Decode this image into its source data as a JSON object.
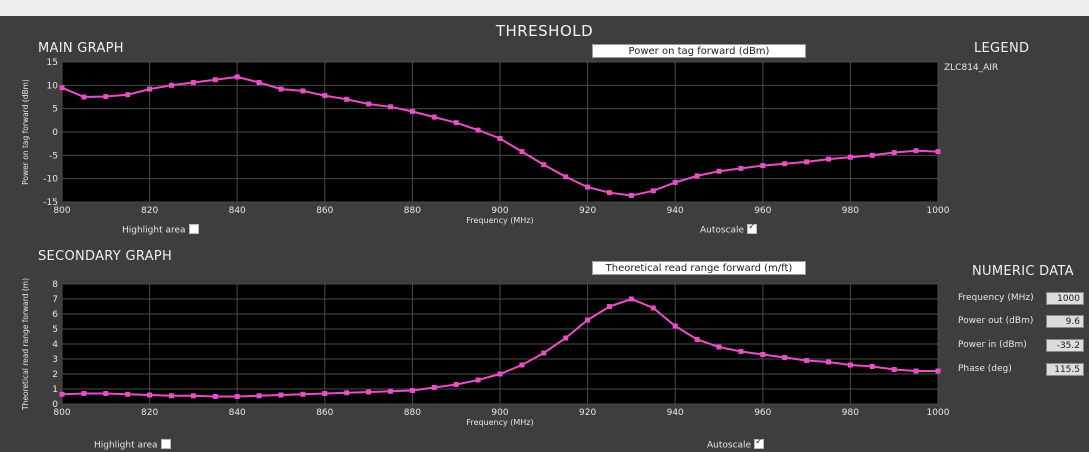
{
  "app": {
    "title": "THRESHOLD"
  },
  "main_graph": {
    "section_title": "MAIN GRAPH",
    "selector_label": "Power on tag forward (dBm)",
    "highlight_label": "Highlight area",
    "highlight_checked": false,
    "autoscale_label": "Autoscale",
    "autoscale_checked": true
  },
  "secondary_graph": {
    "section_title": "SECONDARY GRAPH",
    "selector_label": "Theoretical read range forward (m/ft)",
    "highlight_label": "Highlight area",
    "highlight_checked": false,
    "autoscale_label": "Autoscale",
    "autoscale_checked": true
  },
  "legend": {
    "title": "LEGEND",
    "items": [
      "ZLC814_AIR"
    ]
  },
  "numeric_data": {
    "title": "NUMERIC DATA",
    "rows": [
      {
        "label": "Frequency (MHz)",
        "value": "1000"
      },
      {
        "label": "Power out (dBm)",
        "value": "9.6"
      },
      {
        "label": "Power in (dBm)",
        "value": "-35.2"
      },
      {
        "label": "Phase (deg)",
        "value": "115.5"
      }
    ]
  },
  "colors": {
    "series": "#e84fc4",
    "plot_bg": "#000000",
    "grid": "#4a4a4a"
  },
  "chart_data": [
    {
      "type": "line",
      "xlabel": "Frequency (MHz)",
      "ylabel": "Power on tag forward (dBm)",
      "xlim": [
        800,
        1000
      ],
      "ylim": [
        -15,
        15
      ],
      "x_ticks": [
        800,
        820,
        840,
        860,
        880,
        900,
        920,
        940,
        960,
        980,
        1000
      ],
      "y_ticks": [
        15,
        10,
        5,
        0,
        -5,
        -10,
        -15
      ],
      "grid": true,
      "series": [
        {
          "x": [
            800,
            805,
            810,
            815,
            820,
            825,
            830,
            835,
            840,
            845,
            850,
            855,
            860,
            865,
            870,
            875,
            880,
            885,
            890,
            895,
            900,
            905,
            910,
            915,
            920,
            925,
            930,
            935,
            940,
            945,
            950,
            955,
            960,
            965,
            970,
            975,
            980,
            985,
            990,
            995,
            1000
          ],
          "y": [
            9.5,
            7.5,
            7.6,
            8,
            9.2,
            10,
            10.6,
            11.2,
            11.8,
            10.6,
            9.2,
            8.8,
            7.8,
            7,
            6,
            5.4,
            4.4,
            3.2,
            2,
            0.4,
            -1.4,
            -4.2,
            -7,
            -9.6,
            -11.8,
            -13,
            -13.6,
            -12.6,
            -10.8,
            -9.4,
            -8.4,
            -7.8,
            -7.2,
            -6.8,
            -6.4,
            -5.8,
            -5.4,
            -5,
            -4.4,
            -4,
            -4.2
          ]
        }
      ]
    },
    {
      "type": "line",
      "xlabel": "Frequency (MHz)",
      "ylabel": "Theoretical read range forward (m)",
      "xlim": [
        800,
        1000
      ],
      "ylim": [
        0,
        8
      ],
      "x_ticks": [
        800,
        820,
        840,
        860,
        880,
        900,
        920,
        940,
        960,
        980,
        1000
      ],
      "y_ticks": [
        8,
        7,
        6,
        5,
        4,
        3,
        2,
        1,
        0
      ],
      "grid": true,
      "series": [
        {
          "x": [
            800,
            805,
            810,
            815,
            820,
            825,
            830,
            835,
            840,
            845,
            850,
            855,
            860,
            865,
            870,
            875,
            880,
            885,
            890,
            895,
            900,
            905,
            910,
            915,
            920,
            925,
            930,
            935,
            940,
            945,
            950,
            955,
            960,
            965,
            970,
            975,
            980,
            985,
            990,
            995,
            1000
          ],
          "y": [
            0.65,
            0.7,
            0.7,
            0.65,
            0.6,
            0.55,
            0.55,
            0.5,
            0.5,
            0.55,
            0.6,
            0.65,
            0.7,
            0.75,
            0.8,
            0.85,
            0.9,
            1.1,
            1.3,
            1.6,
            2.0,
            2.6,
            3.4,
            4.4,
            5.6,
            6.5,
            7.0,
            6.4,
            5.2,
            4.3,
            3.8,
            3.5,
            3.3,
            3.1,
            2.9,
            2.8,
            2.6,
            2.5,
            2.3,
            2.2,
            2.2
          ]
        }
      ]
    }
  ]
}
